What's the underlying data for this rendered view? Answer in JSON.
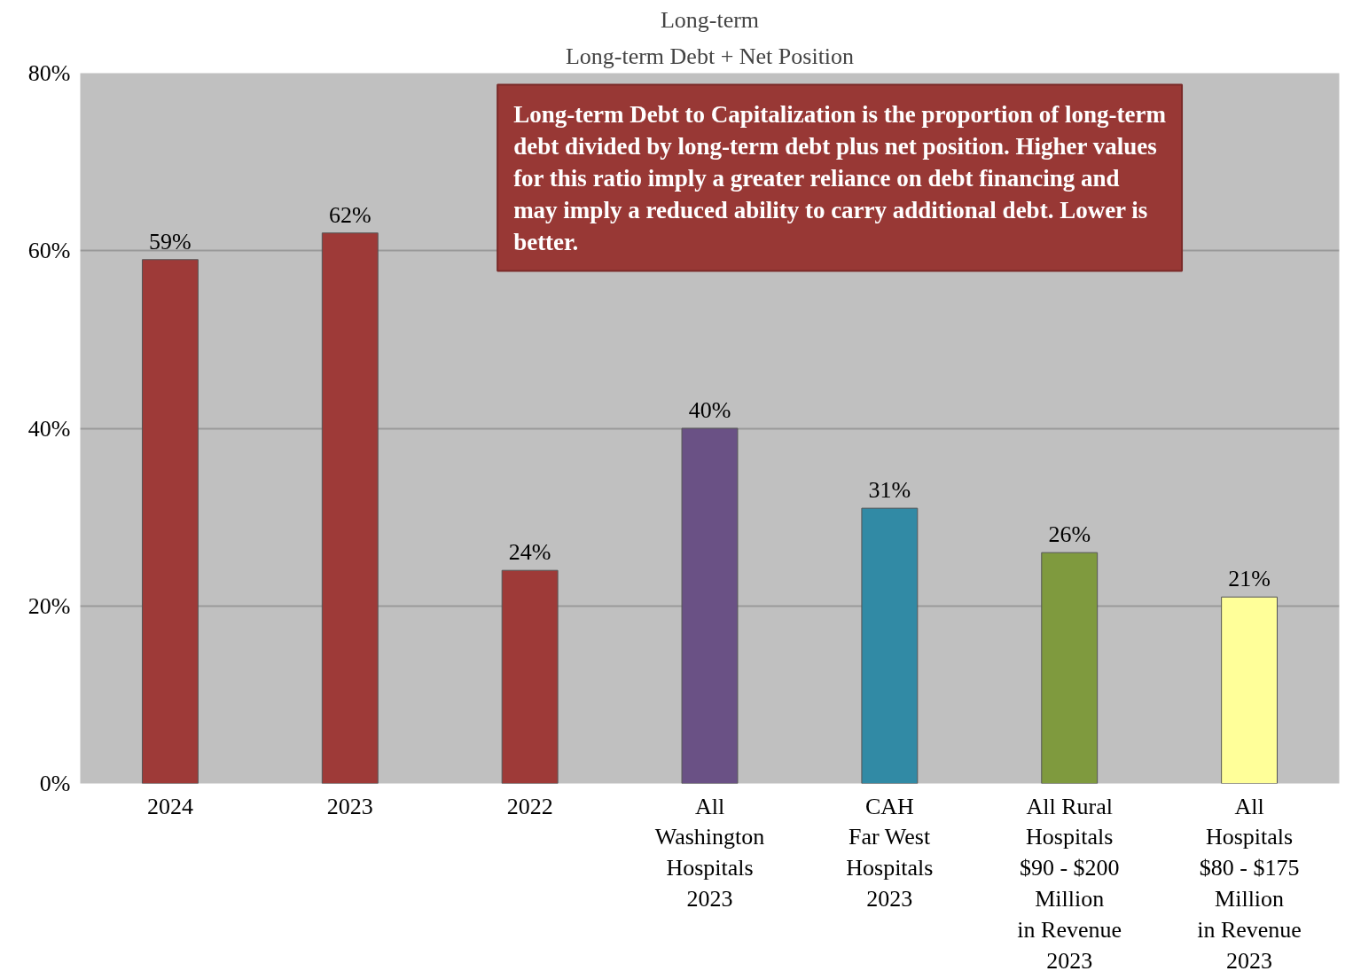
{
  "chart_data": {
    "type": "bar",
    "title": "Long-term",
    "subtitle": "Long-term Debt + Net Position",
    "categories": [
      "2024",
      "2023",
      "2022",
      "All\nWashington\nHospitals\n2023",
      "CAH\nFar West\nHospitals\n2023",
      "All Rural\nHospitals\n$90 - $200\nMillion\nin Revenue\n2023",
      "All\nHospitals\n$80 - $175\nMillion\nin Revenue\n2023"
    ],
    "values": [
      59,
      62,
      24,
      40,
      31,
      26,
      21
    ],
    "colors": [
      "#9e3a38",
      "#9e3a38",
      "#9e3a38",
      "#6a5185",
      "#318aa5",
      "#7f9a3e",
      "#ffff99"
    ],
    "value_labels": [
      "59%",
      "62%",
      "24%",
      "40%",
      "31%",
      "26%",
      "21%"
    ],
    "ylim": [
      0,
      80
    ],
    "yticks": [
      {
        "value": 0,
        "label": "0%"
      },
      {
        "value": 20,
        "label": "20%"
      },
      {
        "value": 40,
        "label": "40%"
      },
      {
        "value": 60,
        "label": "60%"
      },
      {
        "value": 80,
        "label": "80%"
      }
    ],
    "grid": "y",
    "annotations": [
      "Long-term Debt to Capitalization is the proportion of long-term debt divided by long-term debt plus net position. Higher values for this ratio imply a greater reliance on debt financing and may imply a reduced ability to carry additional debt. Lower is better."
    ]
  }
}
